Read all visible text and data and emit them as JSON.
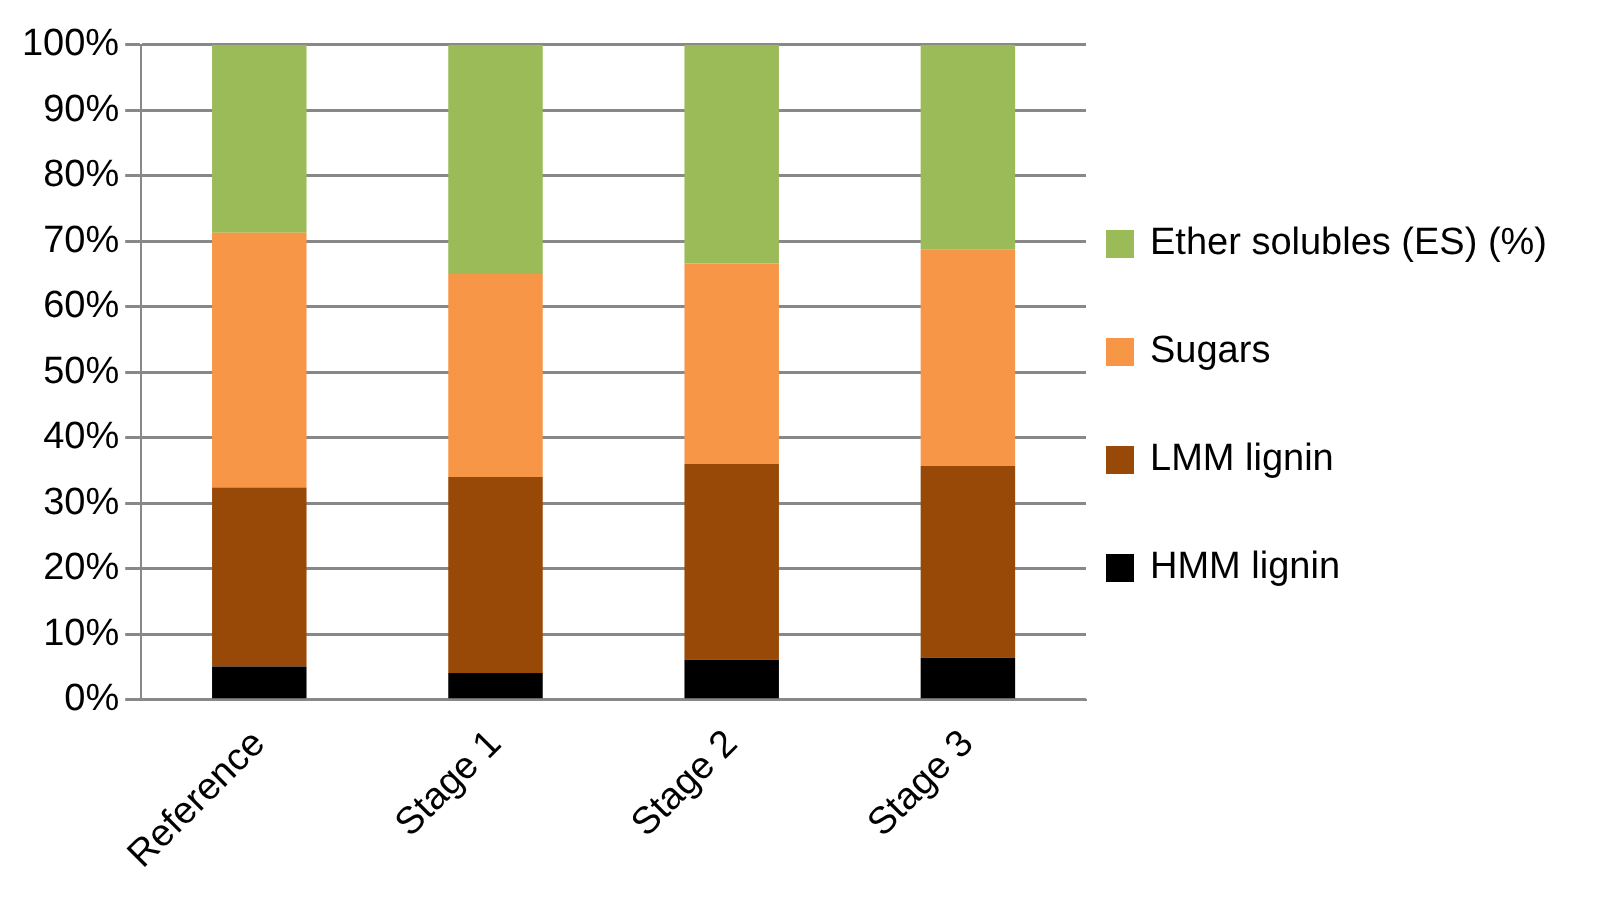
{
  "chart_data": {
    "type": "bar",
    "stacked": true,
    "categories": [
      "Reference",
      "Stage 1",
      "Stage 2",
      "Stage 3"
    ],
    "series": [
      {
        "name": "HMM lignin",
        "color": "#000000",
        "values": [
          5.1,
          4.1,
          6.1,
          6.4
        ]
      },
      {
        "name": "LMM lignin",
        "color": "#984807",
        "values": [
          27.3,
          29.9,
          29.9,
          29.3
        ]
      },
      {
        "name": "Sugars",
        "color": "#f79646",
        "values": [
          38.9,
          31.0,
          30.6,
          33.0
        ]
      },
      {
        "name": "Ether solubles (ES) (%)",
        "color": "#9bbb59",
        "values": [
          28.7,
          35.0,
          33.4,
          31.3
        ]
      }
    ],
    "ylim": [
      0,
      100
    ],
    "yticks": [
      {
        "value": 0,
        "label": "0%"
      },
      {
        "value": 10,
        "label": "10%"
      },
      {
        "value": 20,
        "label": "20%"
      },
      {
        "value": 30,
        "label": "30%"
      },
      {
        "value": 40,
        "label": "40%"
      },
      {
        "value": 50,
        "label": "50%"
      },
      {
        "value": 60,
        "label": "60%"
      },
      {
        "value": 70,
        "label": "70%"
      },
      {
        "value": 80,
        "label": "80%"
      },
      {
        "value": 90,
        "label": "90%"
      },
      {
        "value": 100,
        "label": "100%"
      }
    ],
    "grid": "y",
    "legend": "right"
  }
}
